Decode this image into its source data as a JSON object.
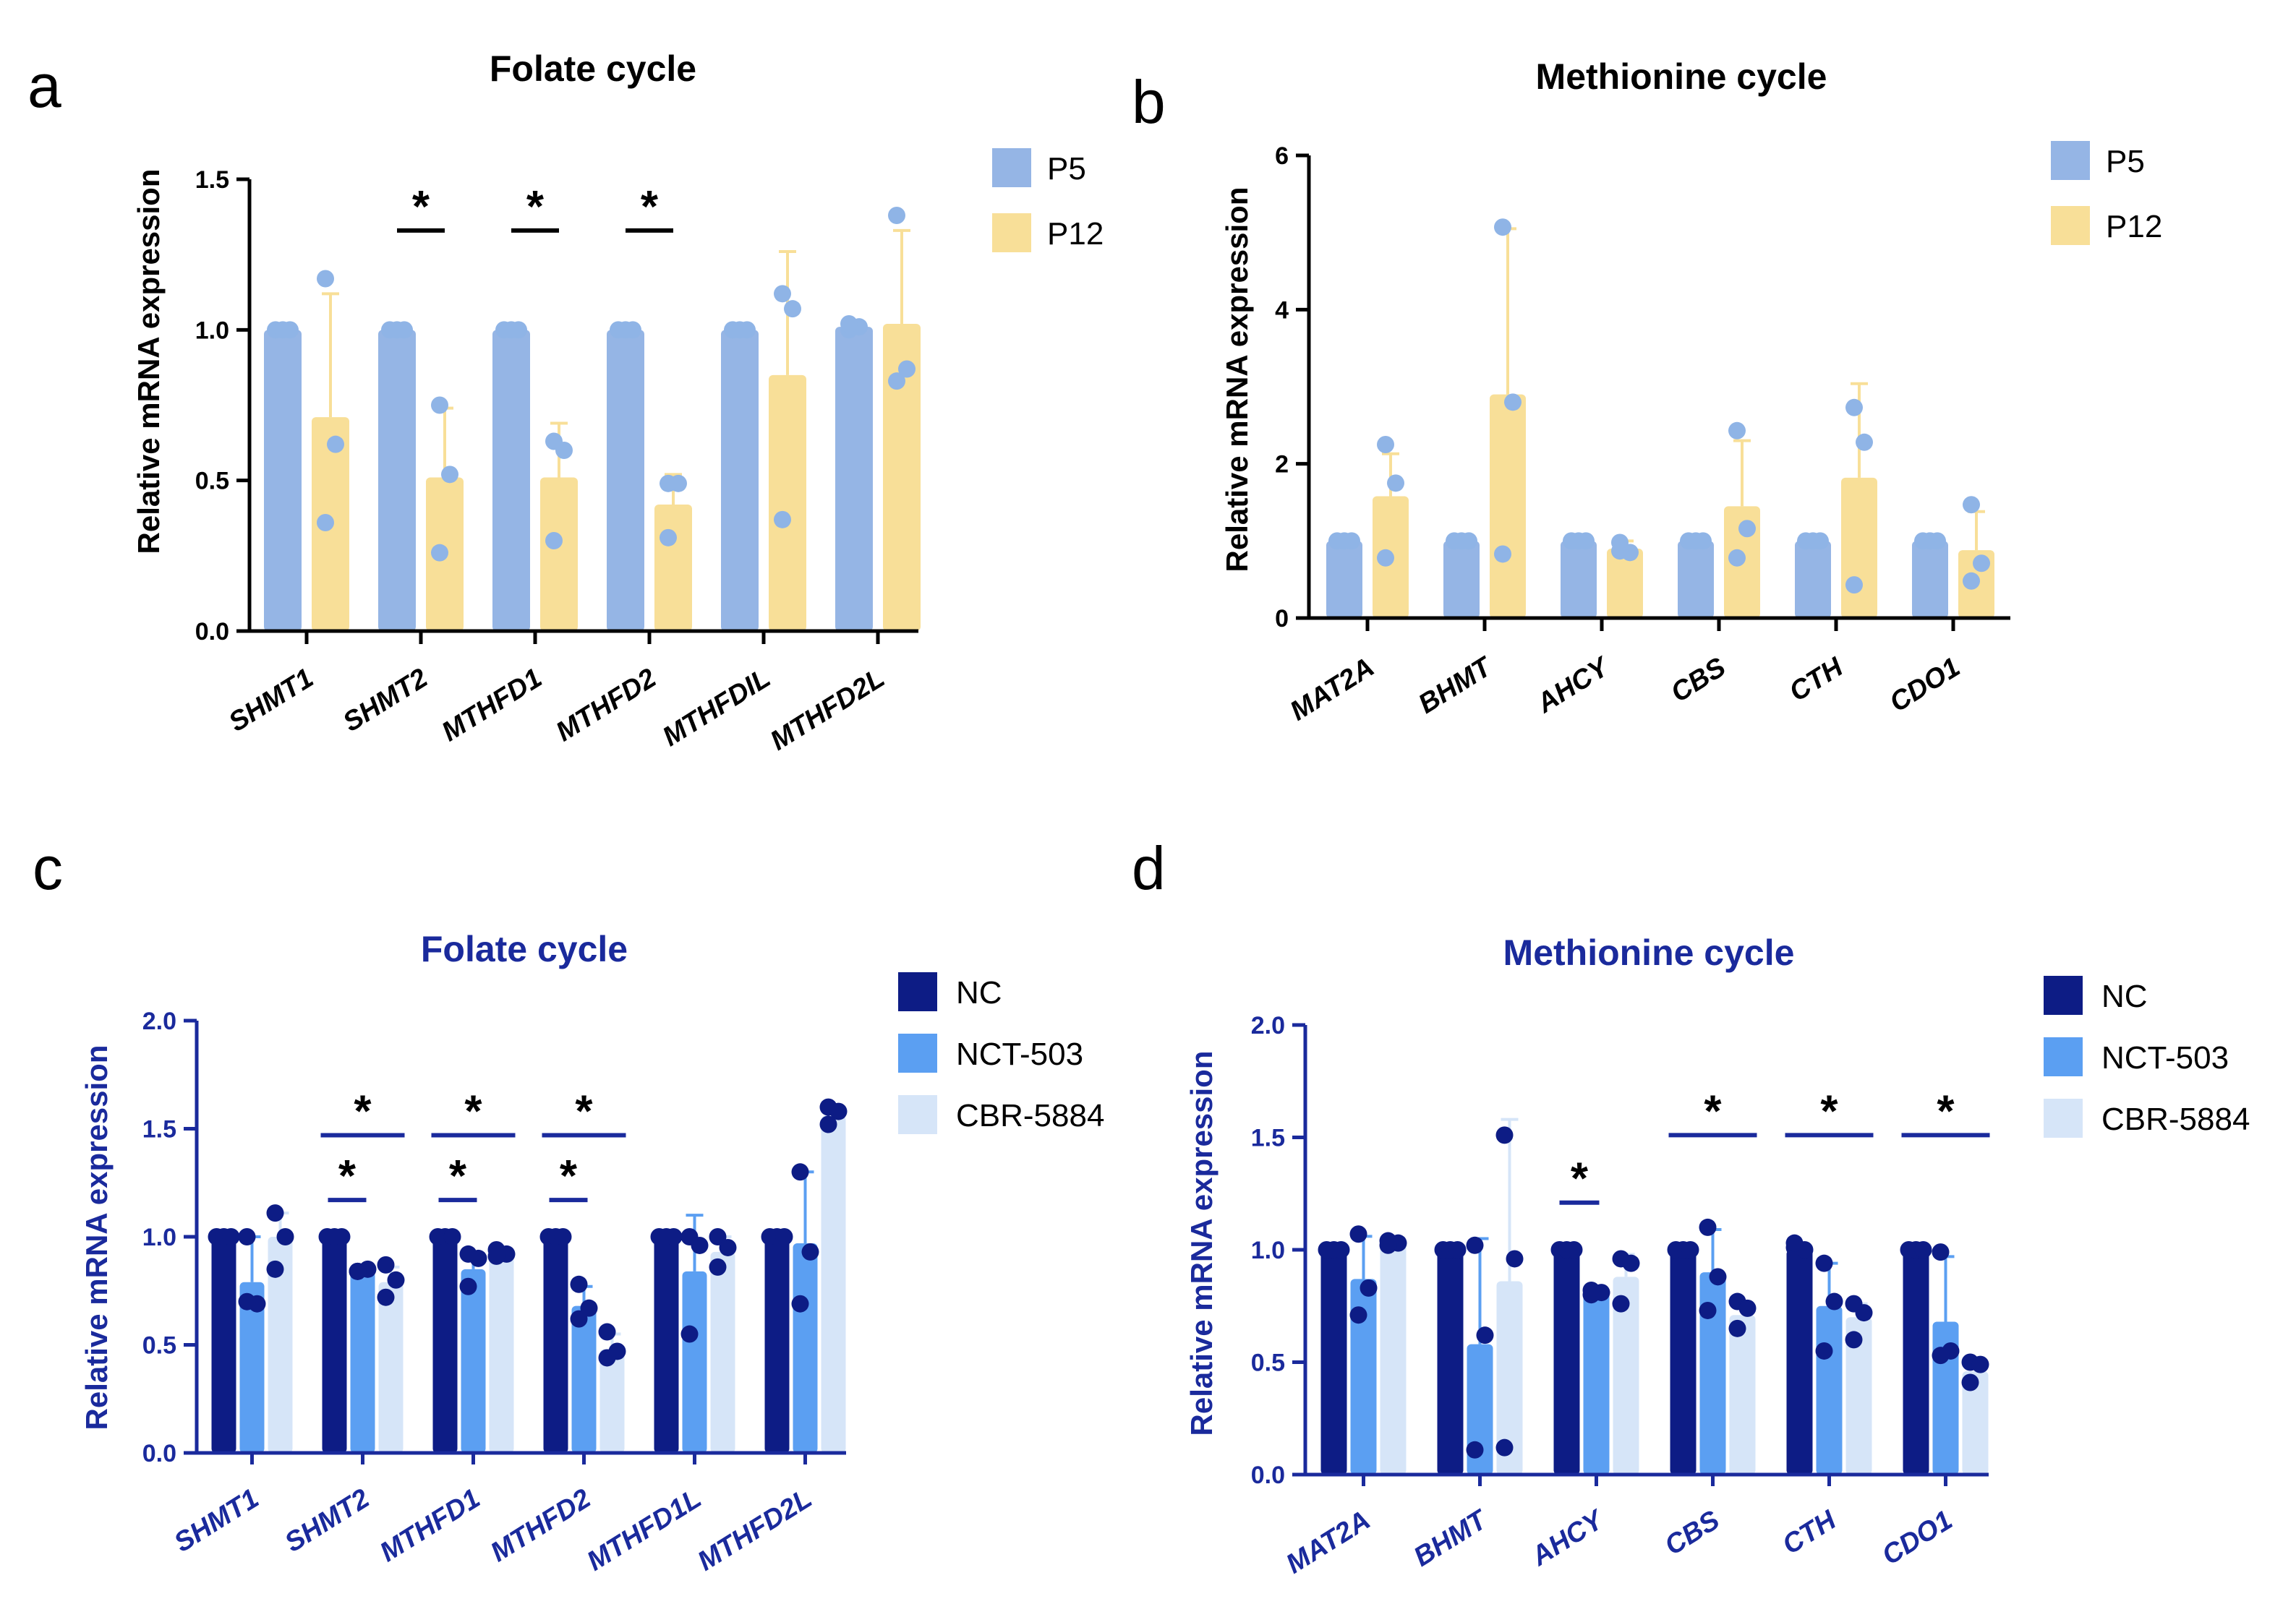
{
  "chart_data": [
    {
      "panel": "a",
      "type": "bar",
      "title": "Folate cycle",
      "xlabel": "",
      "ylabel": "Relative mRNA expression",
      "ylim": [
        0,
        1.5
      ],
      "yticks": [
        "0.0",
        "0.5",
        "1.0",
        "1.5"
      ],
      "categories": [
        "SHMT1",
        "SHMT2",
        "MTHFD1",
        "MTHFD2",
        "MTHFDIL",
        "MTHFD2L"
      ],
      "colors": {
        "axis": "#000000",
        "title": "#000000",
        "label": "#000000",
        "tick": "#000000",
        "dot": "#8fb4e6",
        "sig": "#000000"
      },
      "legend": "top-right",
      "series": [
        {
          "name": "P5",
          "color": "#95b5e5",
          "err_color": "#95b5e5",
          "values": [
            1.0,
            1.0,
            1.0,
            1.0,
            1.0,
            1.01
          ],
          "errors": [
            0,
            0,
            0,
            0,
            0,
            0.01
          ],
          "points": [
            [
              1,
              1,
              1
            ],
            [
              1,
              1,
              1
            ],
            [
              1,
              1,
              1
            ],
            [
              1,
              1,
              1
            ],
            [
              1,
              1,
              1
            ],
            [
              1.0,
              1.01,
              1.02
            ]
          ]
        },
        {
          "name": "P12",
          "color": "#f8df98",
          "err_color": "#f8df98",
          "values": [
            0.71,
            0.51,
            0.51,
            0.42,
            0.85,
            1.02
          ],
          "errors": [
            0.41,
            0.23,
            0.18,
            0.1,
            0.41,
            0.31
          ],
          "points": [
            [
              1.17,
              0.62,
              0.36
            ],
            [
              0.75,
              0.52,
              0.26
            ],
            [
              0.63,
              0.6,
              0.3
            ],
            [
              0.49,
              0.49,
              0.31
            ],
            [
              1.12,
              1.07,
              0.37
            ],
            [
              1.38,
              0.87,
              0.83
            ]
          ]
        }
      ],
      "significance": [
        {
          "label": "*",
          "category": 1,
          "y": 1.33
        },
        {
          "label": "*",
          "category": 2,
          "y": 1.33
        },
        {
          "label": "*",
          "category": 3,
          "y": 1.33
        }
      ]
    },
    {
      "panel": "b",
      "type": "bar",
      "title": "Methionine cycle",
      "xlabel": "",
      "ylabel": "Relative mRNA expression",
      "ylim": [
        0,
        6
      ],
      "yticks": [
        "0",
        "2",
        "4",
        "6"
      ],
      "categories": [
        "MAT2A",
        "BHMT",
        "AHCY",
        "CBS",
        "CTH",
        "CDO1"
      ],
      "colors": {
        "axis": "#000000",
        "title": "#000000",
        "label": "#000000",
        "tick": "#000000",
        "dot": "#8fb4e6",
        "sig": "#000000"
      },
      "legend": "top-right",
      "series": [
        {
          "name": "P5",
          "color": "#95b5e5",
          "err_color": "#95b5e5",
          "values": [
            1.0,
            1.0,
            1.0,
            1.0,
            1.0,
            1.0
          ],
          "errors": [
            0,
            0,
            0,
            0,
            0,
            0
          ],
          "points": [
            [
              1,
              1,
              1
            ],
            [
              1,
              1,
              1
            ],
            [
              1,
              1,
              1
            ],
            [
              1,
              1,
              1
            ],
            [
              1,
              1,
              1
            ],
            [
              1,
              1,
              1
            ]
          ]
        },
        {
          "name": "P12",
          "color": "#f8df98",
          "err_color": "#f8df98",
          "values": [
            1.58,
            2.9,
            0.9,
            1.45,
            1.82,
            0.88
          ],
          "errors": [
            0.55,
            2.15,
            0.1,
            0.85,
            1.22,
            0.5
          ],
          "points": [
            [
              2.25,
              1.75,
              0.78
            ],
            [
              5.07,
              2.8,
              0.83
            ],
            [
              0.98,
              0.85,
              0.87
            ],
            [
              2.43,
              1.16,
              0.78
            ],
            [
              2.73,
              2.28,
              0.43
            ],
            [
              1.47,
              0.71,
              0.48
            ]
          ]
        }
      ],
      "significance": []
    },
    {
      "panel": "c",
      "type": "bar",
      "title": "Folate cycle",
      "xlabel": "",
      "ylabel": "Relative mRNA expression",
      "ylim": [
        0,
        2.0
      ],
      "yticks": [
        "0.0",
        "0.5",
        "1.0",
        "1.5",
        "2.0"
      ],
      "categories": [
        "SHMT1",
        "SHMT2",
        "MTHFD1",
        "MTHFD2",
        "MTHFD1L",
        "MTHFD2L"
      ],
      "colors": {
        "axis": "#1a2a9c",
        "title": "#1a2a9c",
        "label": "#1a2a9c",
        "tick": "#1a2a9c",
        "dot": "#0d1c85",
        "sig": "#1a2a9c"
      },
      "legend": "top-right",
      "series": [
        {
          "name": "NC",
          "color": "#0d1c85",
          "err_color": "#0d1c85",
          "values": [
            1.0,
            1.0,
            1.0,
            1.0,
            1.0,
            1.0
          ],
          "errors": [
            0,
            0,
            0,
            0,
            0,
            0
          ],
          "points": [
            [
              1,
              1,
              1
            ],
            [
              1,
              1,
              1
            ],
            [
              1,
              1,
              1
            ],
            [
              1,
              1,
              1
            ],
            [
              1,
              1,
              1
            ],
            [
              1,
              1,
              1
            ]
          ]
        },
        {
          "name": "NCT-503",
          "color": "#5b9ff2",
          "err_color": "#5b9ff2",
          "values": [
            0.79,
            0.84,
            0.85,
            0.68,
            0.84,
            0.97
          ],
          "errors": [
            0.21,
            0.02,
            0.06,
            0.09,
            0.26,
            0.33
          ],
          "points": [
            [
              1.0,
              0.69,
              0.7
            ],
            [
              0.84,
              0.85,
              0.84
            ],
            [
              0.92,
              0.9,
              0.77
            ],
            [
              0.78,
              0.67,
              0.62
            ],
            [
              1.0,
              0.96,
              0.55
            ],
            [
              1.3,
              0.93,
              0.69
            ]
          ]
        },
        {
          "name": "CBR-5884",
          "color": "#d6e5f8",
          "err_color": "#d6e5f8",
          "values": [
            1.0,
            0.79,
            0.92,
            0.48,
            0.93,
            1.56
          ],
          "errors": [
            0.11,
            0.07,
            0.02,
            0.07,
            0.07,
            0.04
          ],
          "points": [
            [
              1.11,
              1.0,
              0.85
            ],
            [
              0.87,
              0.8,
              0.72
            ],
            [
              0.94,
              0.92,
              0.91
            ],
            [
              0.56,
              0.47,
              0.44
            ],
            [
              1.0,
              0.95,
              0.86
            ],
            [
              1.6,
              1.58,
              1.52
            ]
          ]
        }
      ],
      "significance": [
        {
          "label": "*",
          "category": 1,
          "y": 1.47,
          "span": "wide"
        },
        {
          "label": "*",
          "category": 2,
          "y": 1.47,
          "span": "wide"
        },
        {
          "label": "*",
          "category": 3,
          "y": 1.47,
          "span": "wide"
        },
        {
          "label": "*",
          "category": 1,
          "y": 1.17,
          "span": "narrow"
        },
        {
          "label": "*",
          "category": 2,
          "y": 1.17,
          "span": "narrow"
        },
        {
          "label": "*",
          "category": 3,
          "y": 1.17,
          "span": "narrow"
        }
      ]
    },
    {
      "panel": "d",
      "type": "bar",
      "title": "Methionine cycle",
      "xlabel": "",
      "ylabel": "Relative mRNA expression",
      "ylim": [
        0,
        2.0
      ],
      "yticks": [
        "0.0",
        "0.5",
        "1.0",
        "1.5",
        "2.0"
      ],
      "categories": [
        "MAT2A",
        "BHMT",
        "AHCY",
        "CBS",
        "CTH",
        "CDO1"
      ],
      "colors": {
        "axis": "#1a2a9c",
        "title": "#1a2a9c",
        "label": "#1a2a9c",
        "tick": "#1a2a9c",
        "dot": "#0d1c85",
        "sig": "#1a2a9c"
      },
      "legend": "top-right",
      "series": [
        {
          "name": "NC",
          "color": "#0d1c85",
          "err_color": "#0d1c85",
          "values": [
            1.0,
            1.0,
            1.0,
            1.0,
            1.0,
            1.0
          ],
          "errors": [
            0,
            0,
            0,
            0,
            0.02,
            0
          ],
          "points": [
            [
              1,
              1,
              1
            ],
            [
              1,
              1,
              1
            ],
            [
              1,
              1,
              1
            ],
            [
              1,
              1,
              1
            ],
            [
              1.01,
              1.0,
              1.03
            ],
            [
              1,
              1,
              1
            ]
          ]
        },
        {
          "name": "NCT-503",
          "color": "#5b9ff2",
          "err_color": "#5b9ff2",
          "values": [
            0.87,
            0.58,
            0.81,
            0.9,
            0.75,
            0.68
          ],
          "errors": [
            0.19,
            0.47,
            0.02,
            0.19,
            0.19,
            0.29
          ],
          "points": [
            [
              1.07,
              0.83,
              0.71
            ],
            [
              1.02,
              0.62,
              0.11
            ],
            [
              0.82,
              0.81,
              0.8
            ],
            [
              1.1,
              0.88,
              0.73
            ],
            [
              0.94,
              0.77,
              0.55
            ],
            [
              0.99,
              0.55,
              0.53
            ]
          ]
        },
        {
          "name": "CBR-5884",
          "color": "#d6e5f8",
          "err_color": "#d6e5f8",
          "values": [
            1.03,
            0.86,
            0.88,
            0.71,
            0.7,
            0.46
          ],
          "errors": [
            0.02,
            0.72,
            0.1,
            0.06,
            0.06,
            0.05
          ],
          "points": [
            [
              1.04,
              1.03,
              1.02
            ],
            [
              1.51,
              0.96,
              0.12
            ],
            [
              0.96,
              0.94,
              0.76
            ],
            [
              0.77,
              0.74,
              0.65
            ],
            [
              0.76,
              0.72,
              0.6
            ],
            [
              0.5,
              0.49,
              0.41
            ]
          ]
        }
      ],
      "significance": [
        {
          "label": "*",
          "category": 2,
          "y": 1.21,
          "span": "narrow"
        },
        {
          "label": "*",
          "category": 3,
          "y": 1.51,
          "span": "wide"
        },
        {
          "label": "*",
          "category": 4,
          "y": 1.51,
          "span": "wide"
        },
        {
          "label": "*",
          "category": 5,
          "y": 1.51,
          "span": "wide"
        }
      ]
    }
  ]
}
